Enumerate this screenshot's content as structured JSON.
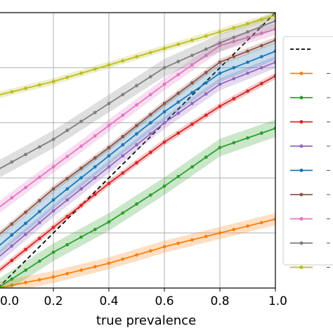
{
  "chart_data": {
    "type": "line",
    "xlabel": "true prevalence",
    "ylabel": "",
    "title": "",
    "xlim": [
      0,
      1
    ],
    "ylim": [
      0,
      1
    ],
    "x_tick_labels": [
      "0.0",
      "0.2",
      "0.4",
      "0.6",
      "0.8",
      "1.0"
    ],
    "grid": true,
    "legend_position": "right",
    "series": [
      {
        "style": "dashed",
        "color": "#000000",
        "values": [
          [
            0,
            0
          ],
          [
            1,
            1
          ]
        ]
      },
      {
        "color": "#ff7f0e",
        "values": [
          [
            0,
            0.0
          ],
          [
            0.2,
            0.04
          ],
          [
            0.4,
            0.09
          ],
          [
            0.6,
            0.15
          ],
          [
            0.8,
            0.2
          ],
          [
            1.0,
            0.25
          ]
        ]
      },
      {
        "color": "#2ca02c",
        "values": [
          [
            0,
            0.0
          ],
          [
            0.2,
            0.13
          ],
          [
            0.4,
            0.24
          ],
          [
            0.6,
            0.37
          ],
          [
            0.8,
            0.51
          ],
          [
            1.0,
            0.58
          ]
        ]
      },
      {
        "color": "#d62728",
        "values": [
          [
            0,
            0.06
          ],
          [
            0.2,
            0.22
          ],
          [
            0.4,
            0.38
          ],
          [
            0.6,
            0.53
          ],
          [
            0.8,
            0.66
          ],
          [
            1.0,
            0.77
          ]
        ]
      },
      {
        "color": "#9467bd",
        "values": [
          [
            0,
            0.11
          ],
          [
            0.2,
            0.28
          ],
          [
            0.4,
            0.44
          ],
          [
            0.6,
            0.6
          ],
          [
            0.8,
            0.74
          ],
          [
            1.0,
            0.82
          ]
        ]
      },
      {
        "color": "#1f77b4",
        "values": [
          [
            0,
            0.15
          ],
          [
            0.2,
            0.32
          ],
          [
            0.4,
            0.48
          ],
          [
            0.6,
            0.64
          ],
          [
            0.8,
            0.78
          ],
          [
            1.0,
            0.86
          ]
        ]
      },
      {
        "color": "#8c564b",
        "values": [
          [
            0,
            0.19
          ],
          [
            0.2,
            0.36
          ],
          [
            0.4,
            0.51
          ],
          [
            0.6,
            0.67
          ],
          [
            0.8,
            0.82
          ],
          [
            1.0,
            0.9
          ]
        ]
      },
      {
        "color": "#e377c2",
        "values": [
          [
            0,
            0.29
          ],
          [
            0.2,
            0.44
          ],
          [
            0.4,
            0.59
          ],
          [
            0.6,
            0.74
          ],
          [
            0.8,
            0.88
          ],
          [
            1.0,
            0.94
          ]
        ]
      },
      {
        "color": "#7f7f7f",
        "values": [
          [
            0,
            0.43
          ],
          [
            0.2,
            0.54
          ],
          [
            0.4,
            0.67
          ],
          [
            0.6,
            0.8
          ],
          [
            0.8,
            0.89
          ],
          [
            1.0,
            0.97
          ]
        ]
      },
      {
        "color": "#bcbd22",
        "values": [
          [
            0,
            0.7
          ],
          [
            0.2,
            0.75
          ],
          [
            0.4,
            0.81
          ],
          [
            0.6,
            0.87
          ],
          [
            0.8,
            0.93
          ],
          [
            1.0,
            0.99
          ]
        ]
      }
    ]
  }
}
